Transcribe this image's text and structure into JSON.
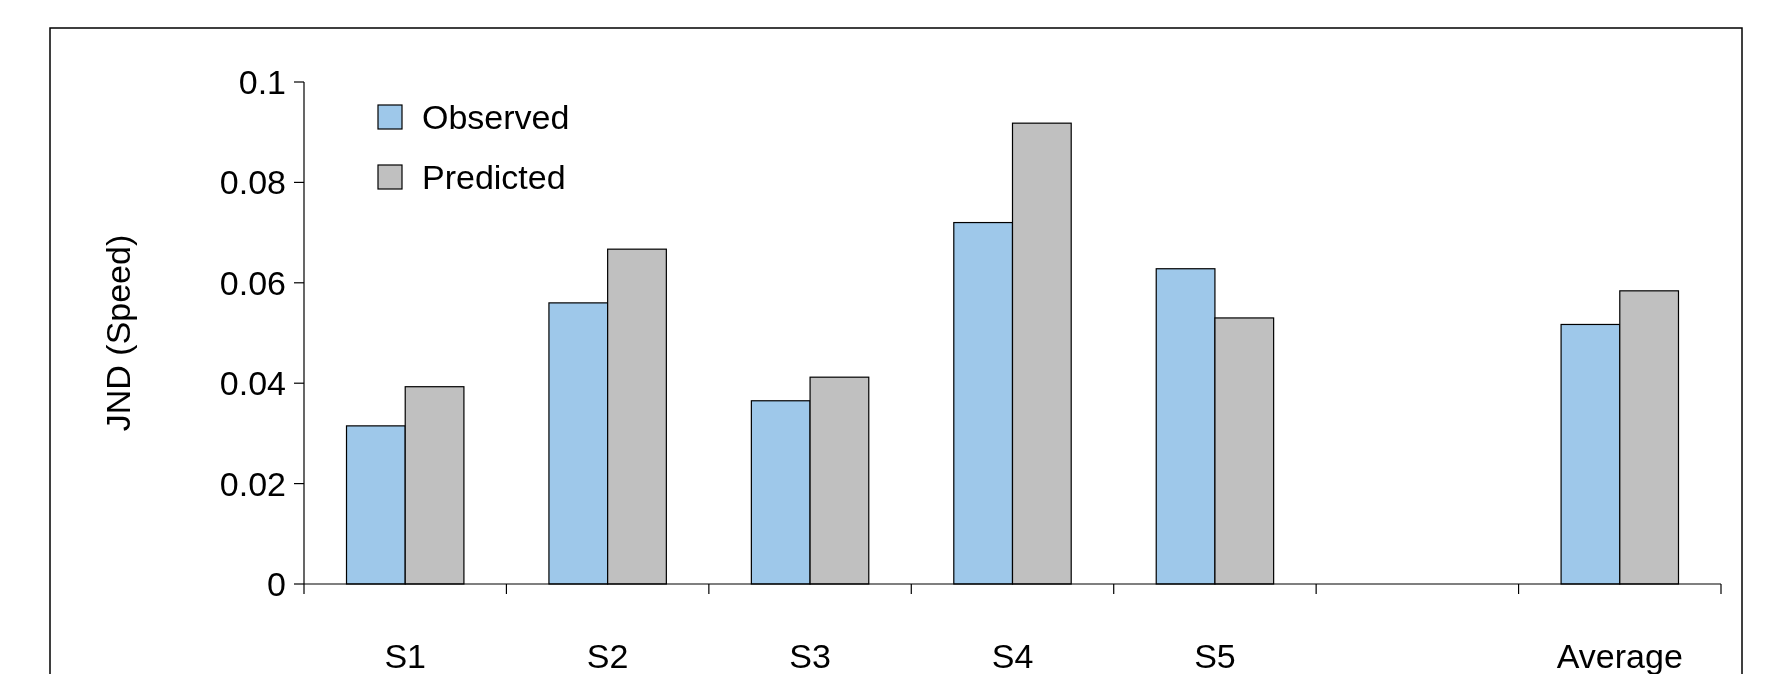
{
  "chart_data": {
    "type": "bar",
    "ylabel": "JND (Speed)",
    "categories": [
      "S1",
      "S2",
      "S3",
      "S4",
      "S5",
      null,
      "Average"
    ],
    "series": [
      {
        "name": "Observed",
        "color": "#9ec8ea",
        "values": [
          0.0315,
          0.056,
          0.0365,
          0.072,
          0.0628,
          null,
          0.0517
        ]
      },
      {
        "name": "Predicted",
        "color": "#c0c0c0",
        "values": [
          0.0393,
          0.0667,
          0.0412,
          0.0918,
          0.053,
          null,
          0.0584
        ]
      }
    ],
    "ylim": [
      0,
      0.1
    ],
    "yticks": [
      0,
      0.02,
      0.04,
      0.06,
      0.08,
      0.1
    ],
    "grid": false,
    "legend": "top left"
  }
}
